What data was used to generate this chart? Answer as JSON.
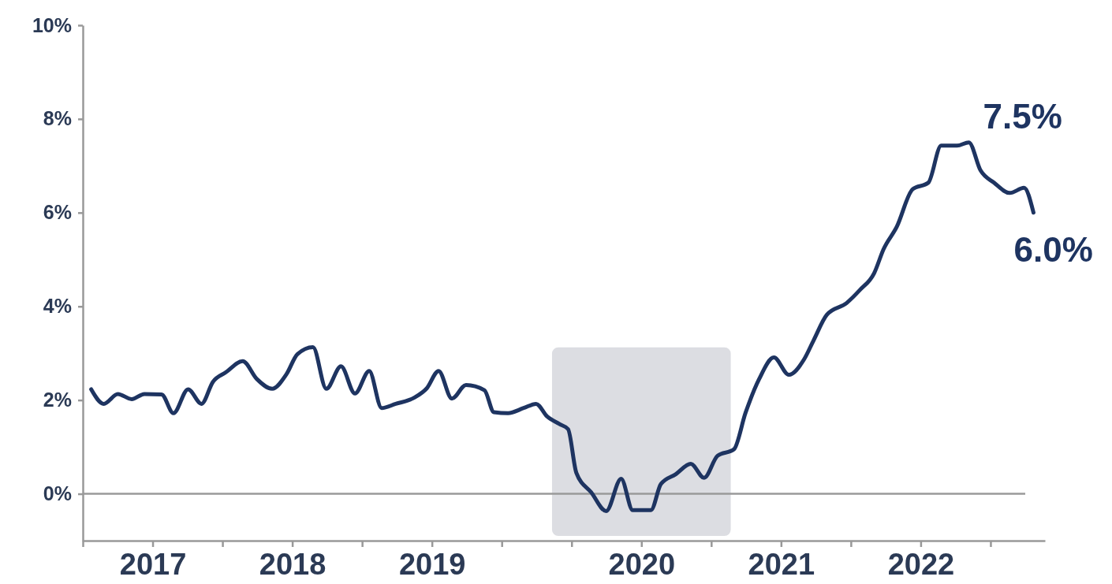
{
  "chart_data": {
    "type": "line",
    "x": [
      2016.56,
      2016.65,
      2016.751,
      2016.85,
      2016.941,
      2017.064,
      2017.149,
      2017.254,
      2017.35,
      2017.432,
      2017.523,
      2017.645,
      2017.746,
      2017.856,
      2017.958,
      2018.037,
      2018.148,
      2018.244,
      2018.349,
      2018.449,
      2018.551,
      2018.64,
      2018.741,
      2018.873,
      2018.963,
      2019.048,
      2019.143,
      2019.244,
      2019.376,
      2019.444,
      2019.545,
      2019.657,
      2019.746,
      2019.825,
      2019.912,
      2019.975,
      2020.034,
      2020.141,
      2020.248,
      2020.355,
      2020.438,
      2020.568,
      2020.64,
      2020.747,
      2020.854,
      2020.949,
      2021.045,
      2021.163,
      2021.246,
      2021.342,
      2021.449,
      2021.556,
      2021.663,
      2021.734,
      2021.828,
      2021.969,
      2022.065,
      2022.167,
      2022.234,
      2022.329,
      2022.442,
      2022.555,
      2022.647,
      2022.76,
      2022.845,
      2022.929,
      2023.025,
      2023.138,
      2023.24,
      2023.308
    ],
    "series": [
      {
        "color": "#1e3461",
        "values": [
          2.23,
          1.92,
          2.13,
          2.02,
          2.13,
          2.12,
          1.72,
          2.23,
          1.92,
          2.39,
          2.59,
          2.83,
          2.45,
          2.24,
          2.55,
          2.98,
          3.13,
          2.24,
          2.72,
          2.14,
          2.62,
          1.83,
          1.92,
          2.05,
          2.25,
          2.62,
          2.03,
          2.32,
          2.21,
          1.74,
          1.72,
          1.83,
          1.92,
          1.65,
          1.49,
          1.38,
          0.45,
          0.03,
          -0.37,
          0.32,
          -0.35,
          -0.35,
          0.21,
          0.42,
          0.64,
          0.34,
          0.81,
          0.95,
          1.73,
          2.44,
          2.91,
          2.54,
          2.86,
          3.28,
          3.82,
          4.07,
          4.35,
          4.71,
          5.22,
          5.7,
          6.5,
          6.64,
          7.43,
          7.43,
          7.5,
          6.9,
          6.64,
          6.42,
          6.53,
          6.0
        ]
      }
    ],
    "xlim": [
      2016.5,
      2023.39
    ],
    "xticks": [
      {
        "value": 2016.5,
        "label": null
      },
      {
        "value": 2017,
        "label": "2017"
      },
      {
        "value": 2017.5,
        "label": null
      },
      {
        "value": 2018,
        "label": "2018"
      },
      {
        "value": 2018.5,
        "label": null
      },
      {
        "value": 2019,
        "label": "2019"
      },
      {
        "value": 2019.5,
        "label": null
      },
      {
        "value": 2020,
        "label": null
      },
      {
        "value": 2020.5,
        "label": "2020"
      },
      {
        "value": 2021,
        "label": null
      },
      {
        "value": 2021.5,
        "label": "2021"
      },
      {
        "value": 2022,
        "label": null
      },
      {
        "value": 2022.5,
        "label": "2022"
      },
      {
        "value": 2023,
        "label": null
      }
    ],
    "ylim": [
      -1,
      10
    ],
    "yticks": [
      {
        "value": 0,
        "label": "0%"
      },
      {
        "value": 2,
        "label": "2%"
      },
      {
        "value": 4,
        "label": "4%"
      },
      {
        "value": 6,
        "label": "6%"
      },
      {
        "value": 8,
        "label": "8%"
      },
      {
        "value": 10,
        "label": "10%"
      }
    ],
    "ref_lines": [
      {
        "axis": "y",
        "value": 0,
        "color": "#9a9a9a"
      }
    ],
    "bands": [
      {
        "axis": "x",
        "from": 2019.86,
        "to": 2021.14,
        "color": "#dcdde2"
      }
    ],
    "annotations": [
      {
        "text": "7.5%",
        "x": 2022.845,
        "y": 7.5
      },
      {
        "text": "6.0%",
        "x": 2023.308,
        "y": 6.0
      }
    ],
    "grid": false,
    "marker": "none",
    "line_style": "solid"
  }
}
